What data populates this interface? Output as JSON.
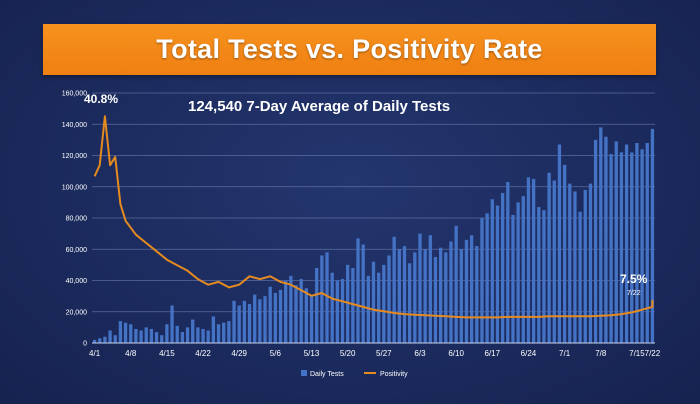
{
  "title": "Total Tests vs. Positivity Rate",
  "chart_data": {
    "type": "bar",
    "subtitle": "124,540 7-Day Average of Daily Tests",
    "ylim": [
      0,
      160000
    ],
    "y_ticks": [
      "0",
      "20,000",
      "40,000",
      "60,000",
      "80,000",
      "100,000",
      "120,000",
      "140,000",
      "160,000"
    ],
    "x_ticks": [
      "4/1",
      "4/8",
      "4/15",
      "4/22",
      "4/29",
      "5/6",
      "5/13",
      "5/20",
      "5/27",
      "6/3",
      "6/10",
      "6/17",
      "6/24",
      "7/1",
      "7/8",
      "7/15",
      "7/22"
    ],
    "grid": true,
    "legend_placement": "bottom",
    "colors": {
      "tests": "#4472c4",
      "positivity": "#e58a1f",
      "title_banner": "#f7921e"
    },
    "annotations": {
      "start_label": "40.8%",
      "end_label": "7.5%",
      "end_small": "7/22"
    },
    "series": [
      {
        "name": "Daily Tests",
        "type": "bar",
        "values": [
          2000,
          3000,
          4000,
          8000,
          5000,
          14000,
          13000,
          12000,
          9000,
          8000,
          10000,
          9000,
          7000,
          5000,
          12000,
          24000,
          11000,
          7000,
          10000,
          15000,
          10000,
          9000,
          8000,
          17000,
          12000,
          13000,
          14000,
          27000,
          24000,
          27000,
          25000,
          31000,
          28000,
          30000,
          36000,
          32000,
          34000,
          40000,
          43000,
          37000,
          41000,
          35000,
          30000,
          48000,
          56000,
          58000,
          45000,
          40000,
          41000,
          50000,
          48000,
          67000,
          63000,
          43000,
          52000,
          45000,
          50000,
          56000,
          68000,
          60000,
          62000,
          51000,
          58000,
          70000,
          60000,
          69000,
          55000,
          61000,
          58000,
          65000,
          75000,
          60000,
          66000,
          69000,
          62000,
          80000,
          83000,
          92000,
          88000,
          96000,
          103000,
          82000,
          90000,
          94000,
          106000,
          105000,
          87000,
          85000,
          109000,
          104000,
          127000,
          114000,
          102000,
          97000,
          84000,
          98000,
          102000,
          130000,
          138000,
          132000,
          121000,
          129000,
          122000,
          127000,
          122000,
          128000,
          124000,
          128000,
          137000
        ]
      },
      {
        "name": "Positivity",
        "type": "line",
        "unit": "%",
        "points": [
          [
            0,
            30.0
          ],
          [
            1,
            32.0
          ],
          [
            2,
            40.8
          ],
          [
            3,
            32.0
          ],
          [
            4,
            33.5
          ],
          [
            5,
            25.0
          ],
          [
            6,
            22.0
          ],
          [
            8,
            19.5
          ],
          [
            10,
            18.0
          ],
          [
            12,
            16.5
          ],
          [
            14,
            15.0
          ],
          [
            16,
            14.0
          ],
          [
            18,
            13.0
          ],
          [
            20,
            11.5
          ],
          [
            22,
            10.5
          ],
          [
            24,
            11.0
          ],
          [
            26,
            10.0
          ],
          [
            28,
            10.5
          ],
          [
            30,
            12.0
          ],
          [
            32,
            11.5
          ],
          [
            34,
            12.0
          ],
          [
            36,
            11.0
          ],
          [
            38,
            10.5
          ],
          [
            40,
            9.5
          ],
          [
            42,
            8.5
          ],
          [
            44,
            9.0
          ],
          [
            46,
            8.0
          ],
          [
            48,
            7.5
          ],
          [
            50,
            7.0
          ],
          [
            52,
            6.5
          ],
          [
            54,
            6.0
          ],
          [
            56,
            5.7
          ],
          [
            58,
            5.4
          ],
          [
            60,
            5.2
          ],
          [
            62,
            5.1
          ],
          [
            64,
            5.0
          ],
          [
            66,
            4.9
          ],
          [
            68,
            4.8
          ],
          [
            70,
            4.7
          ],
          [
            72,
            4.6
          ],
          [
            74,
            4.6
          ],
          [
            76,
            4.6
          ],
          [
            78,
            4.6
          ],
          [
            80,
            4.7
          ],
          [
            82,
            4.7
          ],
          [
            84,
            4.7
          ],
          [
            86,
            4.7
          ],
          [
            88,
            4.8
          ],
          [
            90,
            4.8
          ],
          [
            92,
            4.8
          ],
          [
            94,
            4.8
          ],
          [
            96,
            4.8
          ],
          [
            98,
            4.9
          ],
          [
            100,
            5.0
          ],
          [
            102,
            5.2
          ],
          [
            104,
            5.5
          ],
          [
            106,
            6.0
          ],
          [
            108,
            6.5
          ],
          [
            110,
            6.7
          ],
          [
            112,
            7.0
          ],
          [
            114,
            7.3
          ],
          [
            116,
            7.5
          ],
          [
            118,
            7.4
          ],
          [
            120,
            7.6
          ],
          [
            122,
            7.5
          ],
          [
            124,
            7.5
          ]
        ]
      }
    ]
  }
}
